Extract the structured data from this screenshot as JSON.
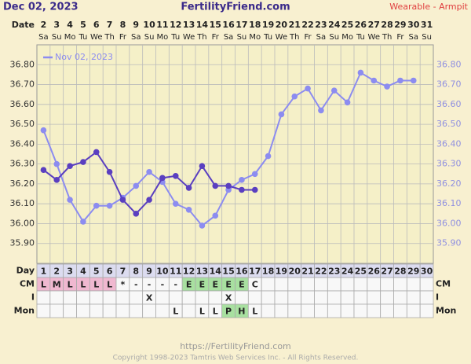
{
  "header": {
    "date": "Dec 02, 2023",
    "site": "FertilityFriend.com",
    "method": "Wearable - Armpit",
    "date_label": "Date"
  },
  "chart_data": {
    "type": "line",
    "dates": [
      "2",
      "3",
      "4",
      "5",
      "6",
      "7",
      "8",
      "9",
      "10",
      "11",
      "12",
      "13",
      "14",
      "15",
      "16",
      "17",
      "18",
      "19",
      "20",
      "21",
      "22",
      "23",
      "24",
      "25",
      "26",
      "27",
      "28",
      "29",
      "30",
      "31"
    ],
    "weekdays": [
      "Sa",
      "Su",
      "Mo",
      "Tu",
      "We",
      "Th",
      "Fr",
      "Sa",
      "Su",
      "Mo",
      "Tu",
      "We",
      "Th",
      "Fr",
      "Sa",
      "Su",
      "Mo",
      "Tu",
      "We",
      "Th",
      "Fr",
      "Sa",
      "Su",
      "Mo",
      "Tu",
      "We",
      "Th",
      "Fr",
      "Sa",
      "Su"
    ],
    "categories": [
      1,
      2,
      3,
      4,
      5,
      6,
      7,
      8,
      9,
      10,
      11,
      12,
      13,
      14,
      15,
      16,
      17,
      18,
      19,
      20,
      21,
      22,
      23,
      24,
      25,
      26,
      27,
      28,
      29,
      30
    ],
    "series": [
      {
        "color": "#5a3fc0",
        "values": [
          36.27,
          36.22,
          36.29,
          36.31,
          36.36,
          36.26,
          36.12,
          36.05,
          36.12,
          36.23,
          36.24,
          36.18,
          36.29,
          36.19,
          36.19,
          36.17,
          36.17,
          null,
          null,
          null,
          null,
          null,
          null,
          null,
          null,
          null,
          null,
          null,
          null,
          null
        ]
      },
      {
        "name": "Nov 02, 2023",
        "color": "#8c8cf0",
        "values": [
          36.47,
          36.3,
          36.12,
          36.01,
          36.09,
          36.09,
          36.13,
          36.19,
          36.26,
          36.21,
          36.1,
          36.07,
          35.99,
          36.04,
          36.17,
          36.22,
          36.25,
          36.34,
          36.55,
          36.64,
          36.68,
          36.57,
          36.67,
          36.61,
          36.76,
          36.72,
          36.69,
          36.72,
          36.72,
          null
        ]
      }
    ],
    "ylim": [
      35.8,
      36.9
    ],
    "yticks": [
      {
        "value": 35.9,
        "label": "35.90"
      },
      {
        "value": 36.0,
        "label": "36.00"
      },
      {
        "value": 36.1,
        "label": "36.10"
      },
      {
        "value": 36.2,
        "label": "36.20"
      },
      {
        "value": 36.3,
        "label": "36.30"
      },
      {
        "value": 36.4,
        "label": "36.40"
      },
      {
        "value": 36.5,
        "label": "36.50"
      },
      {
        "value": 36.6,
        "label": "36.60"
      },
      {
        "value": 36.7,
        "label": "36.70"
      },
      {
        "value": 36.8,
        "label": "36.80"
      }
    ],
    "grid": true
  },
  "table": {
    "rows": [
      {
        "label": "Day",
        "cells": [
          1,
          2,
          3,
          4,
          5,
          6,
          7,
          8,
          9,
          10,
          11,
          12,
          13,
          14,
          15,
          16,
          17,
          18,
          19,
          20,
          21,
          22,
          23,
          24,
          25,
          26,
          27,
          28,
          29,
          30
        ]
      },
      {
        "label": "CM",
        "cells": [
          "L",
          "M",
          "L",
          "L",
          "L",
          "L",
          "*",
          "-",
          "-",
          "-",
          "-",
          "E",
          "E",
          "E",
          "E",
          "E",
          "C",
          null,
          null,
          null,
          null,
          null,
          null,
          null,
          null,
          null,
          null,
          null,
          null,
          null
        ],
        "highlight": {
          "L": "#f0b8d0",
          "M": "#f0b8d0",
          "E": "#a8e0a0"
        }
      },
      {
        "label": "I",
        "cells": [
          null,
          null,
          null,
          null,
          null,
          null,
          null,
          null,
          "X",
          null,
          null,
          null,
          null,
          null,
          "X",
          null,
          null,
          null,
          null,
          null,
          null,
          null,
          null,
          null,
          null,
          null,
          null,
          null,
          null,
          null
        ]
      },
      {
        "label": "Mon",
        "cells": [
          null,
          null,
          null,
          null,
          null,
          null,
          null,
          null,
          null,
          null,
          "L",
          null,
          "L",
          "L",
          "P",
          "H",
          "L",
          null,
          null,
          null,
          null,
          null,
          null,
          null,
          null,
          null,
          null,
          null,
          null,
          null
        ],
        "highlight": {
          "P": "#a8e0a0",
          "H": "#a8e0a0"
        }
      }
    ]
  },
  "footer": {
    "url": "https://FertilityFriend.com",
    "copyright": "Copyright 1998-2023 Tamtris Web Services Inc. - All Rights Reserved."
  }
}
